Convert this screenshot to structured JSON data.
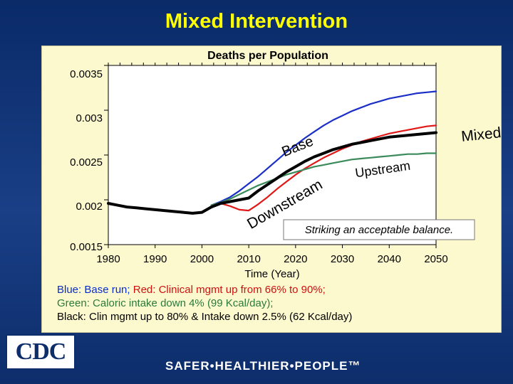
{
  "slide": {
    "title": "Mixed Intervention",
    "footer_tagline": "SAFER•HEALTHIER•PEOPLE™",
    "logo_text": "CDC"
  },
  "legend": {
    "blue_label": "Blue: Base run;",
    "red_label": "Red: Clinical mgmt up from 66% to 90%;",
    "green_label": "Green: Caloric intake down 4% (99 Kcal/day);",
    "black_label": "Black: Clin mgmt up to 80% & Intake down 2.5% (62 Kcal/day)"
  },
  "chart_data": {
    "type": "line",
    "title": "Deaths per Population",
    "xlabel": "Time (Year)",
    "ylabel": "",
    "xlim": [
      1980,
      2050
    ],
    "ylim": [
      0.0015,
      0.0035
    ],
    "x_ticks": [
      1980,
      1990,
      2000,
      2010,
      2020,
      2030,
      2040,
      2050
    ],
    "y_ticks": [
      "0.0035",
      "0.003",
      "0.0025",
      "0.002",
      "0.0015"
    ],
    "grid": false,
    "annotations": [
      "Base",
      "Mixed",
      "Upstream",
      "Downstream",
      "Striking an acceptable balance."
    ],
    "colors": {
      "blue": "#1a2ec8",
      "red": "#e01818",
      "green": "#3a8a5a",
      "black": "#000000"
    },
    "series": [
      {
        "name": "Blue",
        "color": "#1a2ec8",
        "x": [
          2002,
          2004,
          2006,
          2008,
          2010,
          2012,
          2014,
          2016,
          2018,
          2020,
          2022,
          2024,
          2026,
          2028,
          2030,
          2032,
          2034,
          2036,
          2038,
          2040,
          2042,
          2044,
          2046,
          2048,
          2050
        ],
        "y": [
          0.00194,
          0.00198,
          0.00203,
          0.0021,
          0.00218,
          0.00226,
          0.00235,
          0.00244,
          0.00253,
          0.00261,
          0.00269,
          0.00276,
          0.00283,
          0.00289,
          0.00294,
          0.00299,
          0.00303,
          0.00307,
          0.0031,
          0.00313,
          0.00315,
          0.00317,
          0.00319,
          0.0032,
          0.00321
        ]
      },
      {
        "name": "Red",
        "color": "#e01818",
        "x": [
          2002,
          2004,
          2006,
          2008,
          2010,
          2012,
          2014,
          2016,
          2018,
          2020,
          2022,
          2024,
          2026,
          2028,
          2030,
          2032,
          2034,
          2036,
          2038,
          2040,
          2042,
          2044,
          2046,
          2048,
          2050
        ],
        "y": [
          0.00194,
          0.00196,
          0.00193,
          0.00189,
          0.00188,
          0.00195,
          0.00203,
          0.00212,
          0.0022,
          0.00228,
          0.00235,
          0.00241,
          0.00247,
          0.00252,
          0.00257,
          0.00261,
          0.00265,
          0.00268,
          0.00271,
          0.00274,
          0.00276,
          0.00278,
          0.0028,
          0.00282,
          0.00283
        ]
      },
      {
        "name": "Green",
        "color": "#3a8a5a",
        "x": [
          2002,
          2004,
          2006,
          2008,
          2010,
          2012,
          2014,
          2016,
          2018,
          2020,
          2022,
          2024,
          2026,
          2028,
          2030,
          2032,
          2034,
          2036,
          2038,
          2040,
          2042,
          2044,
          2046,
          2048,
          2050
        ],
        "y": [
          0.00194,
          0.00197,
          0.00201,
          0.00206,
          0.00211,
          0.00216,
          0.0022,
          0.00224,
          0.00228,
          0.00231,
          0.00234,
          0.00237,
          0.00239,
          0.00241,
          0.00243,
          0.00245,
          0.00246,
          0.00247,
          0.00248,
          0.00249,
          0.0025,
          0.00251,
          0.00251,
          0.00252,
          0.00252
        ]
      },
      {
        "name": "Black",
        "color": "#000000",
        "x": [
          1980,
          1982,
          1984,
          1986,
          1988,
          1990,
          1992,
          1994,
          1996,
          1998,
          2000,
          2002,
          2004,
          2006,
          2008,
          2010,
          2012,
          2014,
          2016,
          2018,
          2020,
          2022,
          2024,
          2026,
          2028,
          2030,
          2032,
          2034,
          2036,
          2038,
          2040,
          2042,
          2044,
          2046,
          2048,
          2050
        ],
        "y": [
          0.00196,
          0.00194,
          0.00192,
          0.00191,
          0.0019,
          0.00189,
          0.00188,
          0.00187,
          0.00186,
          0.00185,
          0.00186,
          0.00192,
          0.00196,
          0.00198,
          0.002,
          0.00202,
          0.0021,
          0.00217,
          0.00224,
          0.00231,
          0.00237,
          0.00243,
          0.00248,
          0.00252,
          0.00256,
          0.00259,
          0.00262,
          0.00264,
          0.00266,
          0.00268,
          0.0027,
          0.00271,
          0.00272,
          0.00273,
          0.00274,
          0.00275
        ]
      }
    ]
  }
}
